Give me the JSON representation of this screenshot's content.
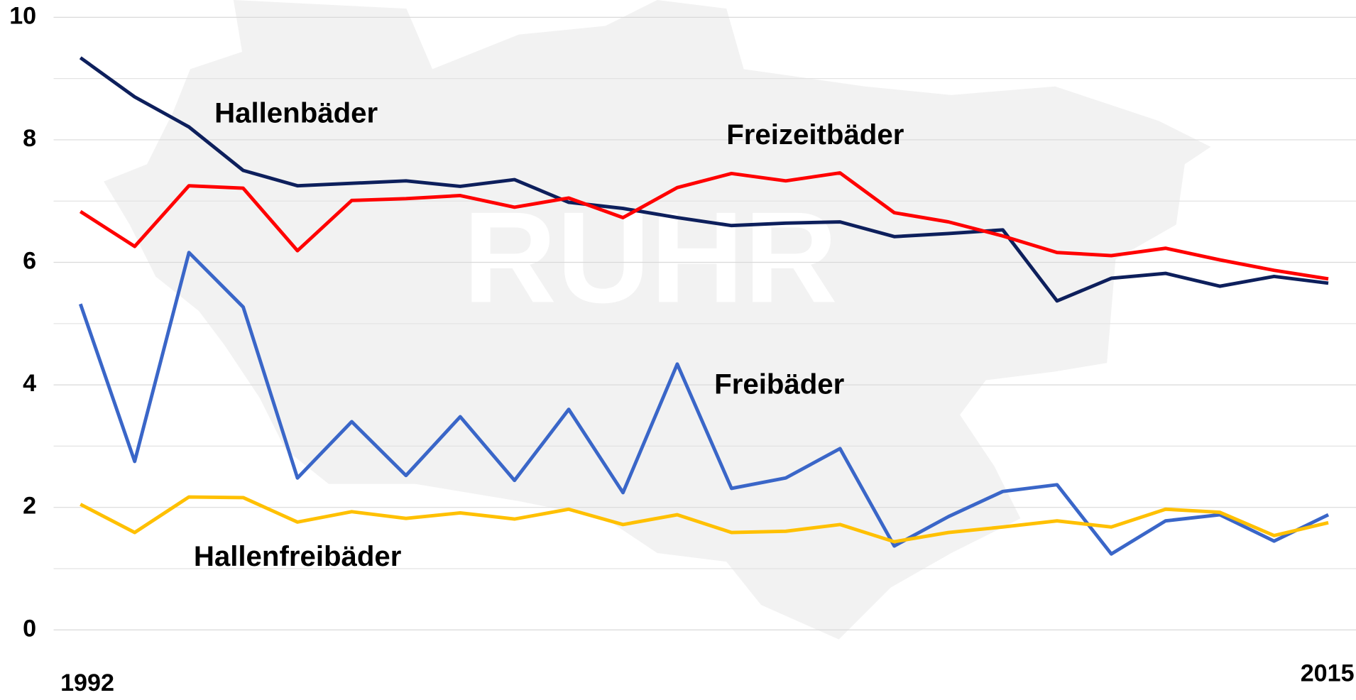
{
  "chart_data": {
    "type": "line",
    "watermark": "RUHR",
    "categories": [
      "1992",
      null,
      null,
      null,
      null,
      null,
      null,
      null,
      null,
      null,
      null,
      null,
      null,
      null,
      null,
      null,
      null,
      null,
      null,
      null,
      null,
      null,
      null,
      "2015"
    ],
    "series": [
      {
        "name": "Hallenbäder",
        "color": "#0d1f5c",
        "values": [
          9.34,
          8.7,
          8.21,
          7.5,
          7.25,
          7.29,
          7.33,
          7.24,
          7.35,
          6.98,
          6.88,
          6.73,
          6.6,
          6.64,
          6.66,
          6.42,
          6.47,
          6.53,
          5.37,
          5.74,
          5.82,
          5.61,
          5.77,
          5.66
        ]
      },
      {
        "name": "Freizeitbäder",
        "color": "#ff0000",
        "values": [
          6.83,
          6.26,
          7.25,
          7.21,
          6.19,
          7.01,
          7.04,
          7.09,
          6.9,
          7.05,
          6.73,
          7.22,
          7.45,
          7.33,
          7.46,
          6.81,
          6.66,
          6.43,
          6.16,
          6.11,
          6.23,
          6.04,
          5.87,
          5.73
        ]
      },
      {
        "name": "Freibäder",
        "color": "#3a66c8",
        "values": [
          5.32,
          2.75,
          6.16,
          5.27,
          2.48,
          3.4,
          2.52,
          3.48,
          2.44,
          3.6,
          2.24,
          4.34,
          2.31,
          2.48,
          2.96,
          1.37,
          1.85,
          2.26,
          2.37,
          1.24,
          1.78,
          1.88,
          1.45,
          1.88
        ]
      },
      {
        "name": "Hallenfreibäder",
        "color": "#ffc000",
        "values": [
          2.05,
          1.59,
          2.17,
          2.16,
          1.76,
          1.93,
          1.82,
          1.91,
          1.81,
          1.97,
          1.72,
          1.88,
          1.59,
          1.61,
          1.72,
          1.44,
          1.59,
          1.68,
          1.78,
          1.68,
          1.97,
          1.92,
          1.54,
          1.75
        ]
      }
    ],
    "ylim": [
      0,
      10
    ],
    "yticks": [
      0,
      2,
      4,
      6,
      8,
      10
    ],
    "minor_yticks": [
      1,
      3,
      5,
      7,
      9
    ],
    "grid": true
  }
}
